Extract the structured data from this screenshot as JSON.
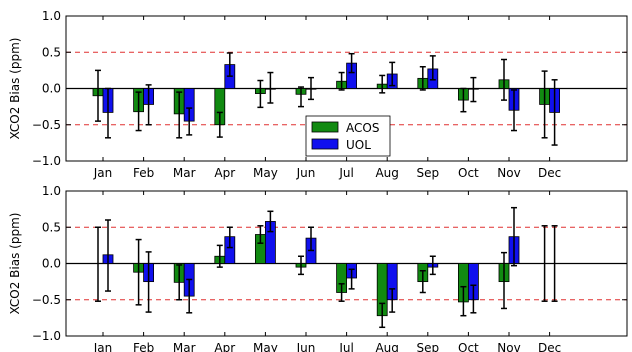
{
  "chart_data": [
    {
      "type": "bar",
      "ylabel": "XCO2 Bias (ppm)",
      "ylim": [
        -1.0,
        1.0
      ],
      "yticks": [
        "1.0",
        "0.5",
        "0.0",
        "−0.5",
        "−1.0"
      ],
      "ytick_values": [
        1.0,
        0.5,
        0.0,
        -0.5,
        -1.0
      ],
      "categories": [
        "Jan",
        "Feb",
        "Mar",
        "Apr",
        "May",
        "Jun",
        "Jul",
        "Aug",
        "Sep",
        "Oct",
        "Nov",
        "Dec"
      ],
      "reference_lines": [
        0.5,
        -0.5
      ],
      "legend": {
        "placement": "center"
      },
      "series": [
        {
          "name": "ACOS",
          "color": "#118a11",
          "values": [
            -0.1,
            -0.32,
            -0.35,
            -0.5,
            -0.07,
            -0.08,
            0.1,
            0.06,
            0.14,
            -0.16,
            0.12,
            -0.22
          ],
          "err_low": [
            -0.45,
            -0.58,
            -0.68,
            -0.67,
            -0.26,
            -0.25,
            -0.02,
            -0.06,
            -0.02,
            -0.32,
            -0.16,
            -0.68
          ],
          "err_high": [
            0.25,
            -0.05,
            -0.05,
            -0.33,
            0.11,
            0.02,
            0.22,
            0.18,
            0.3,
            0.0,
            0.4,
            0.24
          ]
        },
        {
          "name": "UOL",
          "color": "#1010ee",
          "values": [
            -0.33,
            -0.22,
            -0.45,
            0.33,
            -0.01,
            -0.01,
            0.35,
            0.2,
            0.27,
            -0.01,
            -0.3,
            -0.33
          ],
          "err_low": [
            -0.68,
            -0.5,
            -0.64,
            0.17,
            -0.2,
            -0.15,
            0.22,
            0.04,
            0.12,
            -0.18,
            -0.58,
            -0.78
          ],
          "err_high": [
            0.0,
            0.05,
            -0.27,
            0.49,
            0.22,
            0.15,
            0.48,
            0.36,
            0.45,
            0.15,
            -0.02,
            0.12
          ]
        }
      ]
    },
    {
      "type": "bar",
      "ylabel": "XCO2 Bias (ppm)",
      "ylim": [
        -1.0,
        1.0
      ],
      "yticks": [
        "1.0",
        "0.5",
        "0.0",
        "−0.5",
        "−1.0"
      ],
      "ytick_values": [
        1.0,
        0.5,
        0.0,
        -0.5,
        -1.0
      ],
      "categories": [
        "Jan",
        "Feb",
        "Mar",
        "Apr",
        "May",
        "Jun",
        "Jul",
        "Aug",
        "Sep",
        "Oct",
        "Nov",
        "Dec"
      ],
      "reference_lines": [
        0.5,
        -0.5
      ],
      "series": [
        {
          "name": "ACOS",
          "color": "#118a11",
          "values": [
            0.0,
            -0.12,
            -0.26,
            0.1,
            0.4,
            -0.05,
            -0.4,
            -0.72,
            -0.25,
            -0.53,
            -0.25,
            0.0
          ],
          "err_low": [
            -0.52,
            -0.57,
            -0.5,
            -0.05,
            0.28,
            -0.15,
            -0.52,
            -0.88,
            -0.4,
            -0.72,
            -0.62,
            -0.52
          ],
          "err_high": [
            0.5,
            0.33,
            -0.02,
            0.25,
            0.52,
            0.1,
            -0.28,
            -0.55,
            -0.1,
            -0.32,
            0.15,
            0.52
          ]
        },
        {
          "name": "UOL",
          "color": "#1010ee",
          "values": [
            0.12,
            -0.25,
            -0.45,
            0.37,
            0.58,
            0.35,
            -0.2,
            -0.5,
            -0.05,
            -0.5,
            0.37,
            0.0
          ],
          "err_low": [
            -0.38,
            -0.67,
            -0.68,
            0.22,
            0.44,
            0.18,
            -0.35,
            -0.67,
            -0.15,
            -0.68,
            -0.03,
            -0.52
          ],
          "err_high": [
            0.6,
            0.16,
            -0.22,
            0.5,
            0.72,
            0.5,
            -0.08,
            -0.35,
            0.1,
            -0.3,
            0.77,
            0.52
          ]
        }
      ]
    }
  ]
}
